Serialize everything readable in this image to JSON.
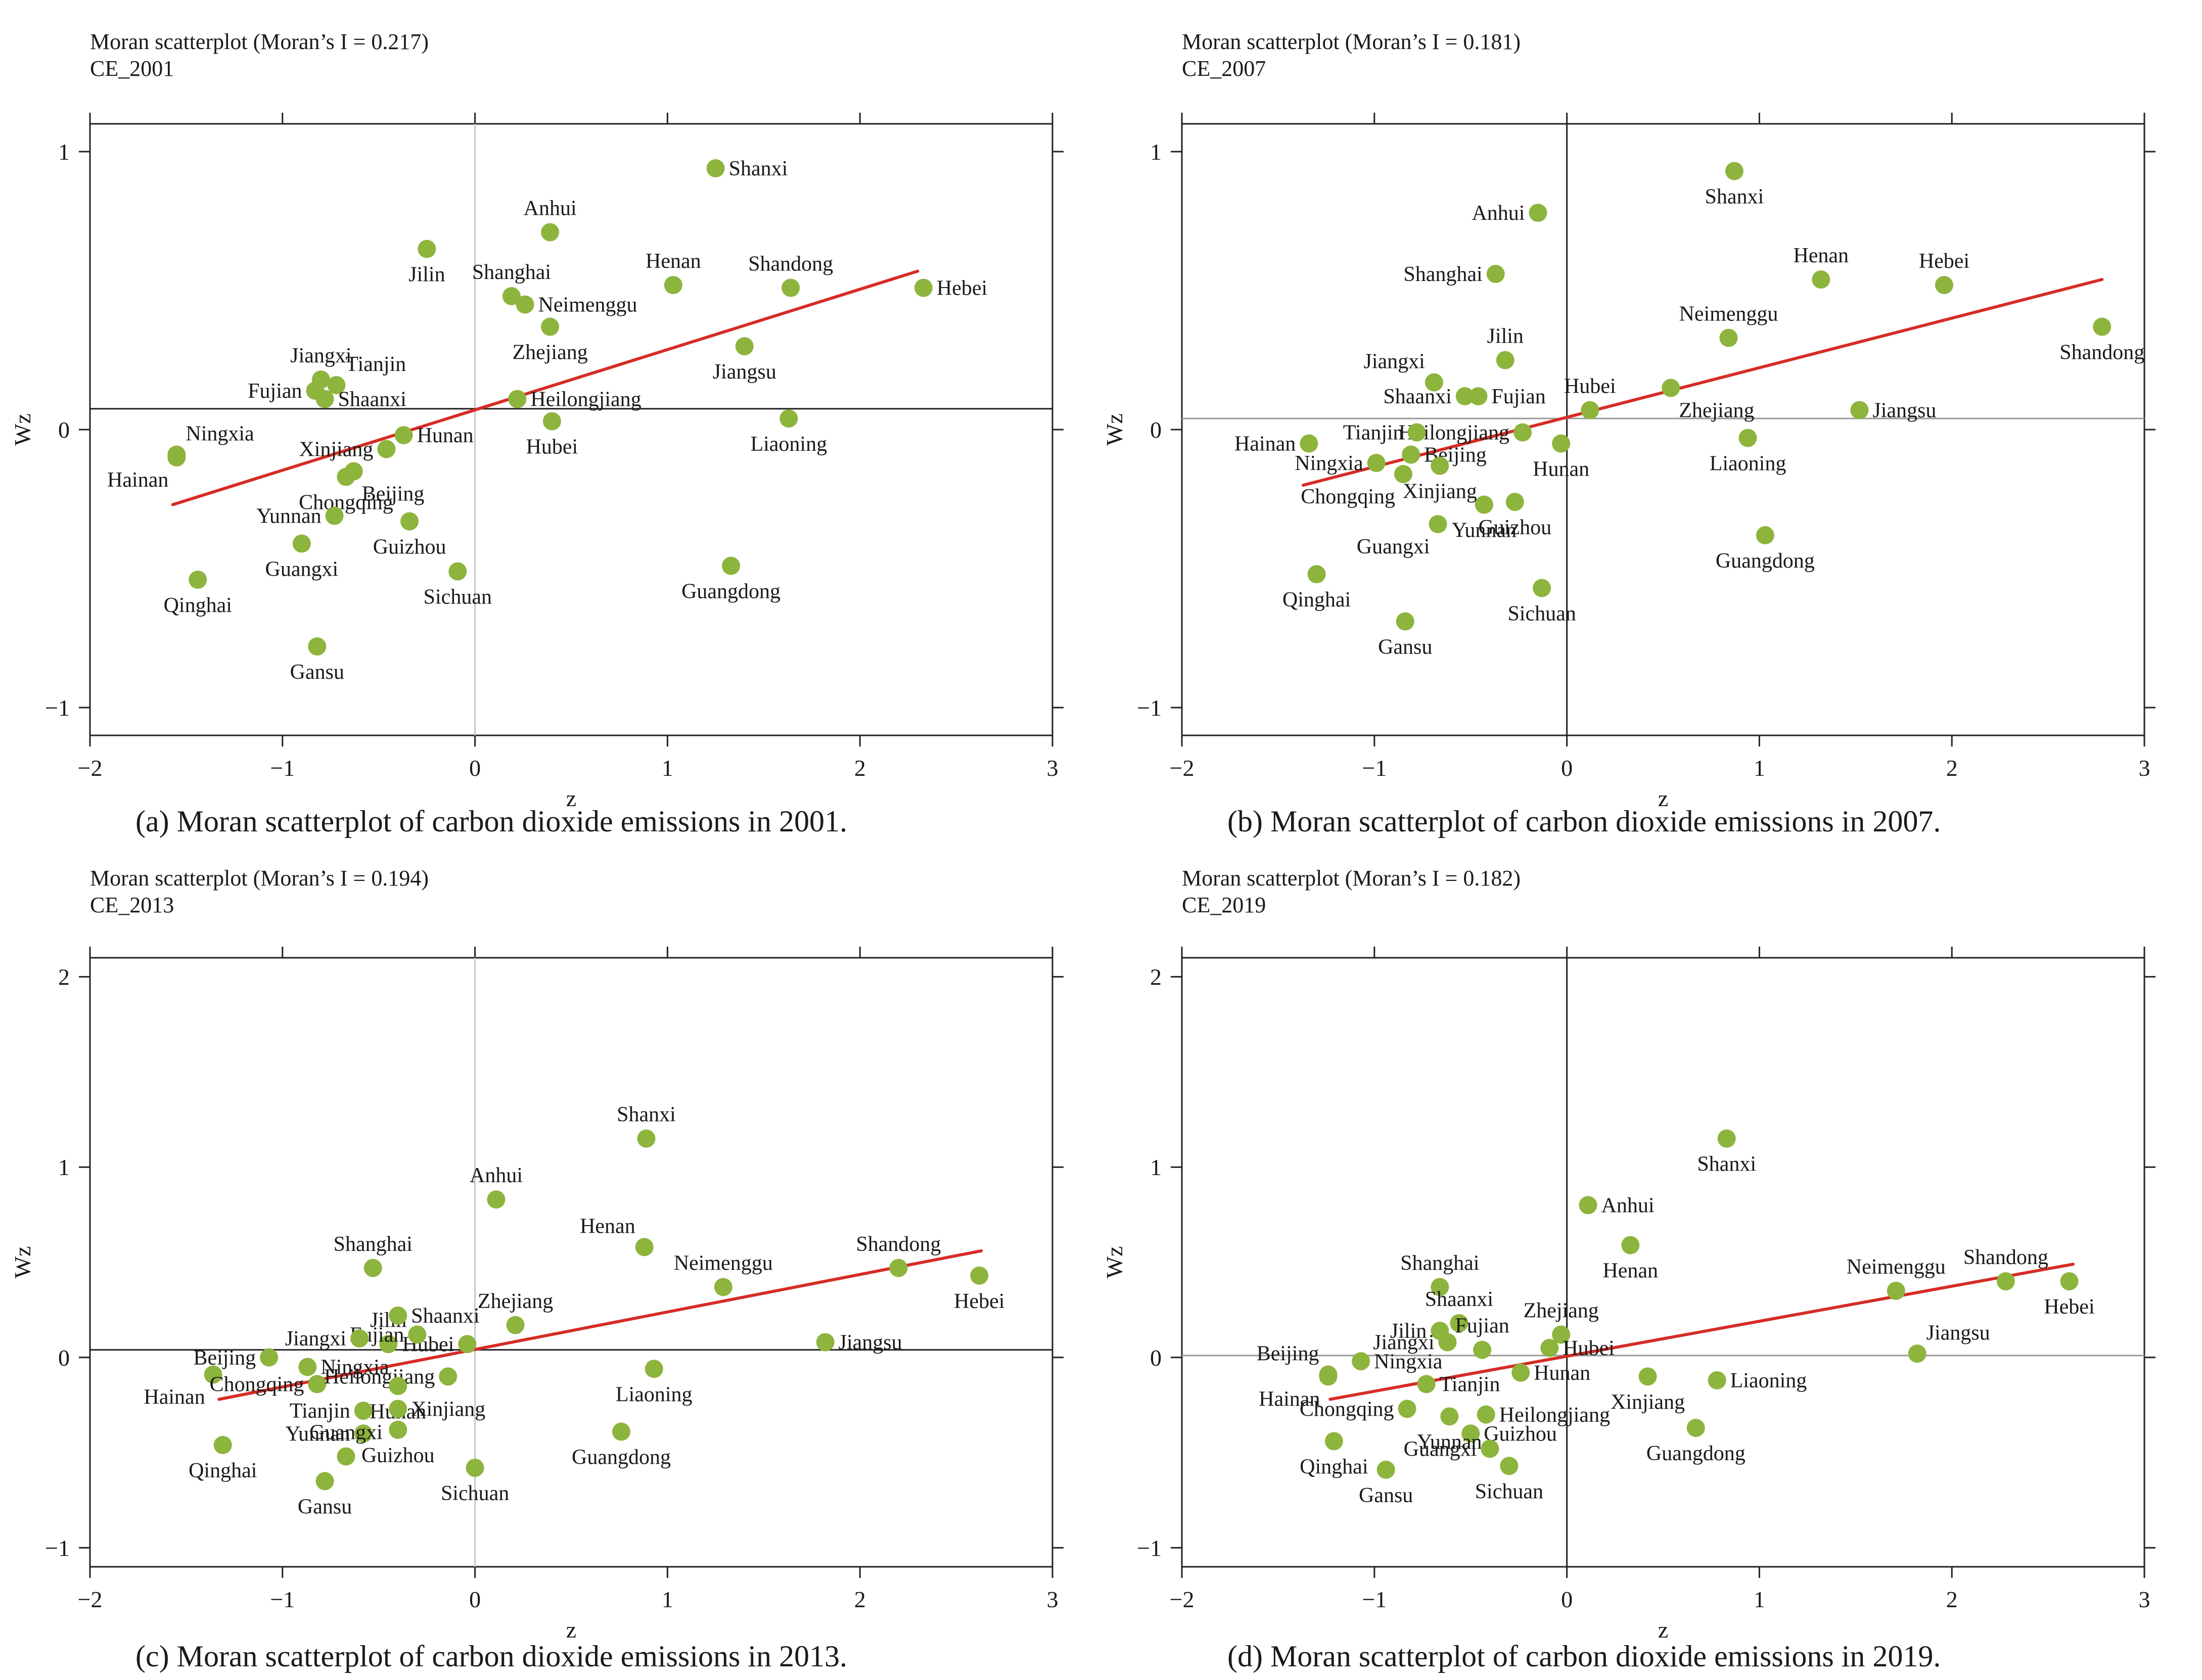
{
  "figure": {
    "colors": {
      "points": "#8db43c",
      "fit_line": "#d62c25",
      "axis": "#222222",
      "ref_light": "#c8c8c8",
      "ref_dark": "#222222"
    }
  },
  "chart_data": [
    {
      "type": "scatter",
      "title": "Moran scatterplot (Moran’s I = 0.217)",
      "subtitle": "CE_2001",
      "caption": "(a)  Moran scatterplot of carbon dioxide emissions in 2001.",
      "xlabel": "z",
      "ylabel": "Wz",
      "xlim": [
        -2,
        3
      ],
      "ylim": [
        -1.1,
        1.1
      ],
      "xticks": [
        -2,
        -1,
        0,
        1,
        2,
        3
      ],
      "yticks": [
        -1,
        0,
        1
      ],
      "mean_z": 0,
      "mean_wz": 0.075,
      "fit_line": {
        "x": [
          -1.57,
          2.3
        ],
        "y": [
          -0.27,
          0.57
        ]
      },
      "points": [
        {
          "name": "Shanxi",
          "x": 1.25,
          "y": 0.94,
          "label": "E"
        },
        {
          "name": "Anhui",
          "x": 0.39,
          "y": 0.71,
          "label": "N"
        },
        {
          "name": "Jilin",
          "x": -0.25,
          "y": 0.65,
          "label": "S"
        },
        {
          "name": "Shanghai",
          "x": 0.19,
          "y": 0.48,
          "label": "N"
        },
        {
          "name": "Neimenggu",
          "x": 0.26,
          "y": 0.45,
          "label": "E"
        },
        {
          "name": "Henan",
          "x": 1.03,
          "y": 0.52,
          "label": "N"
        },
        {
          "name": "Shandong",
          "x": 1.64,
          "y": 0.51,
          "label": "N"
        },
        {
          "name": "Hebei",
          "x": 2.33,
          "y": 0.51,
          "label": "E"
        },
        {
          "name": "Zhejiang",
          "x": 0.39,
          "y": 0.37,
          "label": "S"
        },
        {
          "name": "Jiangsu",
          "x": 1.4,
          "y": 0.3,
          "label": "S"
        },
        {
          "name": "Jiangxi",
          "x": -0.8,
          "y": 0.18,
          "label": "N"
        },
        {
          "name": "Tianjin",
          "x": -0.72,
          "y": 0.16,
          "label": "NE"
        },
        {
          "name": "Fujian",
          "x": -0.83,
          "y": 0.14,
          "label": "W"
        },
        {
          "name": "Shaanxi",
          "x": -0.78,
          "y": 0.11,
          "label": "E"
        },
        {
          "name": "Heilongjiang",
          "x": 0.22,
          "y": 0.11,
          "label": "E"
        },
        {
          "name": "Hubei",
          "x": 0.4,
          "y": 0.03,
          "label": "S"
        },
        {
          "name": "Liaoning",
          "x": 1.63,
          "y": 0.04,
          "label": "S"
        },
        {
          "name": "Hunan",
          "x": -0.37,
          "y": -0.02,
          "label": "E"
        },
        {
          "name": "Xinjiang",
          "x": -0.46,
          "y": -0.07,
          "label": "W"
        },
        {
          "name": "Ningxia",
          "x": -1.55,
          "y": -0.09,
          "label": "NE"
        },
        {
          "name": "Hainan",
          "x": -1.55,
          "y": -0.1,
          "label": "SW"
        },
        {
          "name": "Beijing",
          "x": -0.63,
          "y": -0.15,
          "label": "SE"
        },
        {
          "name": "Chongqing",
          "x": -0.67,
          "y": -0.17,
          "label": "S"
        },
        {
          "name": "Yunnan",
          "x": -0.73,
          "y": -0.31,
          "label": "W"
        },
        {
          "name": "Guizhou",
          "x": -0.34,
          "y": -0.33,
          "label": "S"
        },
        {
          "name": "Guangxi",
          "x": -0.9,
          "y": -0.41,
          "label": "S"
        },
        {
          "name": "Sichuan",
          "x": -0.09,
          "y": -0.51,
          "label": "S"
        },
        {
          "name": "Guangdong",
          "x": 1.33,
          "y": -0.49,
          "label": "S"
        },
        {
          "name": "Qinghai",
          "x": -1.44,
          "y": -0.54,
          "label": "S"
        },
        {
          "name": "Gansu",
          "x": -0.82,
          "y": -0.78,
          "label": "S"
        }
      ]
    },
    {
      "type": "scatter",
      "title": "Moran scatterplot (Moran’s I = 0.181)",
      "subtitle": "CE_2007",
      "caption": "(b)  Moran scatterplot of carbon dioxide emissions in 2007.",
      "xlabel": "z",
      "ylabel": "Wz",
      "xlim": [
        -2,
        3
      ],
      "ylim": [
        -1.1,
        1.1
      ],
      "xticks": [
        -2,
        -1,
        0,
        1,
        2,
        3
      ],
      "yticks": [
        -1,
        0,
        1
      ],
      "mean_z": 0,
      "mean_wz": 0.04,
      "fit_line": {
        "x": [
          -1.37,
          2.78
        ],
        "y": [
          -0.2,
          0.54
        ]
      },
      "points": [
        {
          "name": "Shanxi",
          "x": 0.87,
          "y": 0.93,
          "label": "S"
        },
        {
          "name": "Anhui",
          "x": -0.15,
          "y": 0.78,
          "label": "W"
        },
        {
          "name": "Shanghai",
          "x": -0.37,
          "y": 0.56,
          "label": "W"
        },
        {
          "name": "Henan",
          "x": 1.32,
          "y": 0.54,
          "label": "N"
        },
        {
          "name": "Hebei",
          "x": 1.96,
          "y": 0.52,
          "label": "N"
        },
        {
          "name": "Neimenggu",
          "x": 0.84,
          "y": 0.33,
          "label": "N"
        },
        {
          "name": "Shandong",
          "x": 2.78,
          "y": 0.37,
          "label": "S"
        },
        {
          "name": "Jilin",
          "x": -0.32,
          "y": 0.25,
          "label": "N"
        },
        {
          "name": "Jiangxi",
          "x": -0.69,
          "y": 0.17,
          "label": "NW"
        },
        {
          "name": "Shaanxi",
          "x": -0.53,
          "y": 0.12,
          "label": "W"
        },
        {
          "name": "Fujian",
          "x": -0.46,
          "y": 0.12,
          "label": "E"
        },
        {
          "name": "Hubei",
          "x": 0.12,
          "y": 0.07,
          "label": "N"
        },
        {
          "name": "Zhejiang",
          "x": 0.54,
          "y": 0.15,
          "label": "SE"
        },
        {
          "name": "Jiangsu",
          "x": 1.52,
          "y": 0.07,
          "label": "E"
        },
        {
          "name": "Heilongjiang",
          "x": -0.23,
          "y": -0.01,
          "label": "W"
        },
        {
          "name": "Tianjin",
          "x": -0.78,
          "y": -0.01,
          "label": "W"
        },
        {
          "name": "Hainan",
          "x": -1.34,
          "y": -0.05,
          "label": "W"
        },
        {
          "name": "Liaoning",
          "x": 0.94,
          "y": -0.03,
          "label": "S"
        },
        {
          "name": "Beijing",
          "x": -0.81,
          "y": -0.09,
          "label": "E"
        },
        {
          "name": "Ningxia",
          "x": -0.99,
          "y": -0.12,
          "label": "W"
        },
        {
          "name": "Hunan",
          "x": -0.03,
          "y": -0.05,
          "label": "S"
        },
        {
          "name": "Xinjiang",
          "x": -0.66,
          "y": -0.13,
          "label": "S"
        },
        {
          "name": "Chongqing",
          "x": -0.85,
          "y": -0.16,
          "label": "SW"
        },
        {
          "name": "Guizhou",
          "x": -0.27,
          "y": -0.26,
          "label": "S"
        },
        {
          "name": "Yunnan",
          "x": -0.43,
          "y": -0.27,
          "label": "S"
        },
        {
          "name": "Guangxi",
          "x": -0.67,
          "y": -0.34,
          "label": "SW"
        },
        {
          "name": "Guangdong",
          "x": 1.03,
          "y": -0.38,
          "label": "S"
        },
        {
          "name": "Qinghai",
          "x": -1.3,
          "y": -0.52,
          "label": "S"
        },
        {
          "name": "Sichuan",
          "x": -0.13,
          "y": -0.57,
          "label": "S"
        },
        {
          "name": "Gansu",
          "x": -0.84,
          "y": -0.69,
          "label": "S"
        }
      ]
    },
    {
      "type": "scatter",
      "title": "Moran scatterplot (Moran’s I = 0.194)",
      "subtitle": "CE_2013",
      "caption": "(c)  Moran scatterplot of carbon dioxide emissions in 2013.",
      "xlabel": "z",
      "ylabel": "Wz",
      "xlim": [
        -2,
        3
      ],
      "ylim": [
        -1.1,
        2.1
      ],
      "xticks": [
        -2,
        -1,
        0,
        1,
        2,
        3
      ],
      "yticks": [
        -1,
        0,
        1,
        2
      ],
      "mean_z": 0,
      "mean_wz": 0.04,
      "fit_line": {
        "x": [
          -1.33,
          2.63
        ],
        "y": [
          -0.22,
          0.56
        ]
      },
      "points": [
        {
          "name": "Shanxi",
          "x": 0.89,
          "y": 1.15,
          "label": "N"
        },
        {
          "name": "Shandong",
          "x": 2.2,
          "y": 0.47,
          "label": "N"
        },
        {
          "name": "Hebei",
          "x": 2.62,
          "y": 0.43,
          "label": "S"
        },
        {
          "name": "Anhui",
          "x": 0.11,
          "y": 0.83,
          "label": "N"
        },
        {
          "name": "Henan",
          "x": 0.88,
          "y": 0.58,
          "label": "NW"
        },
        {
          "name": "Shanghai",
          "x": -0.53,
          "y": 0.47,
          "label": "N"
        },
        {
          "name": "Neimenggu",
          "x": 1.29,
          "y": 0.37,
          "label": "N"
        },
        {
          "name": "Jilin",
          "x": -0.45,
          "y": 0.07,
          "label": "N"
        },
        {
          "name": "Shaanxi",
          "x": -0.4,
          "y": 0.22,
          "label": "E"
        },
        {
          "name": "Zhejiang",
          "x": 0.21,
          "y": 0.17,
          "label": "N"
        },
        {
          "name": "Hubei",
          "x": -0.04,
          "y": 0.07,
          "label": "W"
        },
        {
          "name": "Fujian",
          "x": -0.3,
          "y": 0.12,
          "label": "W"
        },
        {
          "name": "Jiangxi",
          "x": -0.6,
          "y": 0.1,
          "label": "W"
        },
        {
          "name": "Jiangsu",
          "x": 1.82,
          "y": 0.08,
          "label": "E"
        },
        {
          "name": "Beijing",
          "x": -1.07,
          "y": 0,
          "label": "W"
        },
        {
          "name": "Ningxia",
          "x": -0.87,
          "y": -0.05,
          "label": "E"
        },
        {
          "name": "Hainan",
          "x": -1.36,
          "y": -0.09,
          "label": "SW"
        },
        {
          "name": "Chongqing",
          "x": -0.82,
          "y": -0.14,
          "label": "W"
        },
        {
          "name": "Heilongjiang",
          "x": -0.14,
          "y": -0.1,
          "label": "W"
        },
        {
          "name": "Liaoning",
          "x": 0.93,
          "y": -0.06,
          "label": "S"
        },
        {
          "name": "Hunan",
          "x": -0.4,
          "y": -0.15,
          "label": "S"
        },
        {
          "name": "Tianjin",
          "x": -0.58,
          "y": -0.28,
          "label": "W"
        },
        {
          "name": "Xinjiang",
          "x": -0.4,
          "y": -0.27,
          "label": "E"
        },
        {
          "name": "Yunnan",
          "x": -0.58,
          "y": -0.4,
          "label": "W"
        },
        {
          "name": "Guizhou",
          "x": -0.4,
          "y": -0.38,
          "label": "S"
        },
        {
          "name": "Guangdong",
          "x": 0.76,
          "y": -0.39,
          "label": "S"
        },
        {
          "name": "Guangxi",
          "x": -0.67,
          "y": -0.52,
          "label": "N"
        },
        {
          "name": "Qinghai",
          "x": -1.31,
          "y": -0.46,
          "label": "S"
        },
        {
          "name": "Sichuan",
          "x": 0,
          "y": -0.58,
          "label": "S"
        },
        {
          "name": "Gansu",
          "x": -0.78,
          "y": -0.65,
          "label": "S"
        }
      ]
    },
    {
      "type": "scatter",
      "title": "Moran scatterplot (Moran’s I = 0.182)",
      "subtitle": "CE_2019",
      "caption": "(d)  Moran scatterplot of carbon dioxide emissions in 2019.",
      "xlabel": "z",
      "ylabel": "Wz",
      "xlim": [
        -2,
        3
      ],
      "ylim": [
        -1.1,
        2.1
      ],
      "xticks": [
        -2,
        -1,
        0,
        1,
        2,
        3
      ],
      "yticks": [
        -1,
        0,
        1,
        2
      ],
      "mean_z": 0,
      "mean_wz": 0.01,
      "fit_line": {
        "x": [
          -1.23,
          2.63
        ],
        "y": [
          -0.22,
          0.49
        ]
      },
      "points": [
        {
          "name": "Shanxi",
          "x": 0.83,
          "y": 1.15,
          "label": "S"
        },
        {
          "name": "Anhui",
          "x": 0.11,
          "y": 0.8,
          "label": "E"
        },
        {
          "name": "Henan",
          "x": 0.33,
          "y": 0.59,
          "label": "S"
        },
        {
          "name": "Shanghai",
          "x": -0.66,
          "y": 0.37,
          "label": "N"
        },
        {
          "name": "Neimenggu",
          "x": 1.71,
          "y": 0.35,
          "label": "N"
        },
        {
          "name": "Shandong",
          "x": 2.28,
          "y": 0.4,
          "label": "N"
        },
        {
          "name": "Hebei",
          "x": 2.61,
          "y": 0.4,
          "label": "S"
        },
        {
          "name": "Shaanxi",
          "x": -0.56,
          "y": 0.18,
          "label": "N"
        },
        {
          "name": "Jilin",
          "x": -0.66,
          "y": 0.14,
          "label": "W"
        },
        {
          "name": "Zhejiang",
          "x": -0.03,
          "y": 0.12,
          "label": "N"
        },
        {
          "name": "Hubei",
          "x": -0.09,
          "y": 0.05,
          "label": "E"
        },
        {
          "name": "Fujian",
          "x": -0.44,
          "y": 0.04,
          "label": "N"
        },
        {
          "name": "Jiangxi",
          "x": -0.62,
          "y": 0.08,
          "label": "W"
        },
        {
          "name": "Jiangsu",
          "x": 1.82,
          "y": 0.02,
          "label": "NE"
        },
        {
          "name": "Beijing",
          "x": -1.24,
          "y": -0.09,
          "label": "NW"
        },
        {
          "name": "Ningxia",
          "x": -1.07,
          "y": -0.02,
          "label": "E"
        },
        {
          "name": "Hainan",
          "x": -1.24,
          "y": -0.1,
          "label": "SW"
        },
        {
          "name": "Tianjin",
          "x": -0.73,
          "y": -0.14,
          "label": "E"
        },
        {
          "name": "Hunan",
          "x": -0.24,
          "y": -0.08,
          "label": "E"
        },
        {
          "name": "Xinjiang",
          "x": 0.42,
          "y": -0.1,
          "label": "S"
        },
        {
          "name": "Liaoning",
          "x": 0.78,
          "y": -0.12,
          "label": "E"
        },
        {
          "name": "Chongqing",
          "x": -0.83,
          "y": -0.27,
          "label": "W"
        },
        {
          "name": "Heilongjiang",
          "x": -0.42,
          "y": -0.3,
          "label": "E"
        },
        {
          "name": "Guizhou",
          "x": -0.5,
          "y": -0.4,
          "label": "E"
        },
        {
          "name": "Yunnan",
          "x": -0.61,
          "y": -0.31,
          "label": "S"
        },
        {
          "name": "Guangdong",
          "x": 0.67,
          "y": -0.37,
          "label": "S"
        },
        {
          "name": "Guangxi",
          "x": -0.4,
          "y": -0.48,
          "label": "W"
        },
        {
          "name": "Qinghai",
          "x": -1.21,
          "y": -0.44,
          "label": "S"
        },
        {
          "name": "Gansu",
          "x": -0.94,
          "y": -0.59,
          "label": "S"
        },
        {
          "name": "Sichuan",
          "x": -0.3,
          "y": -0.57,
          "label": "S"
        }
      ]
    }
  ]
}
